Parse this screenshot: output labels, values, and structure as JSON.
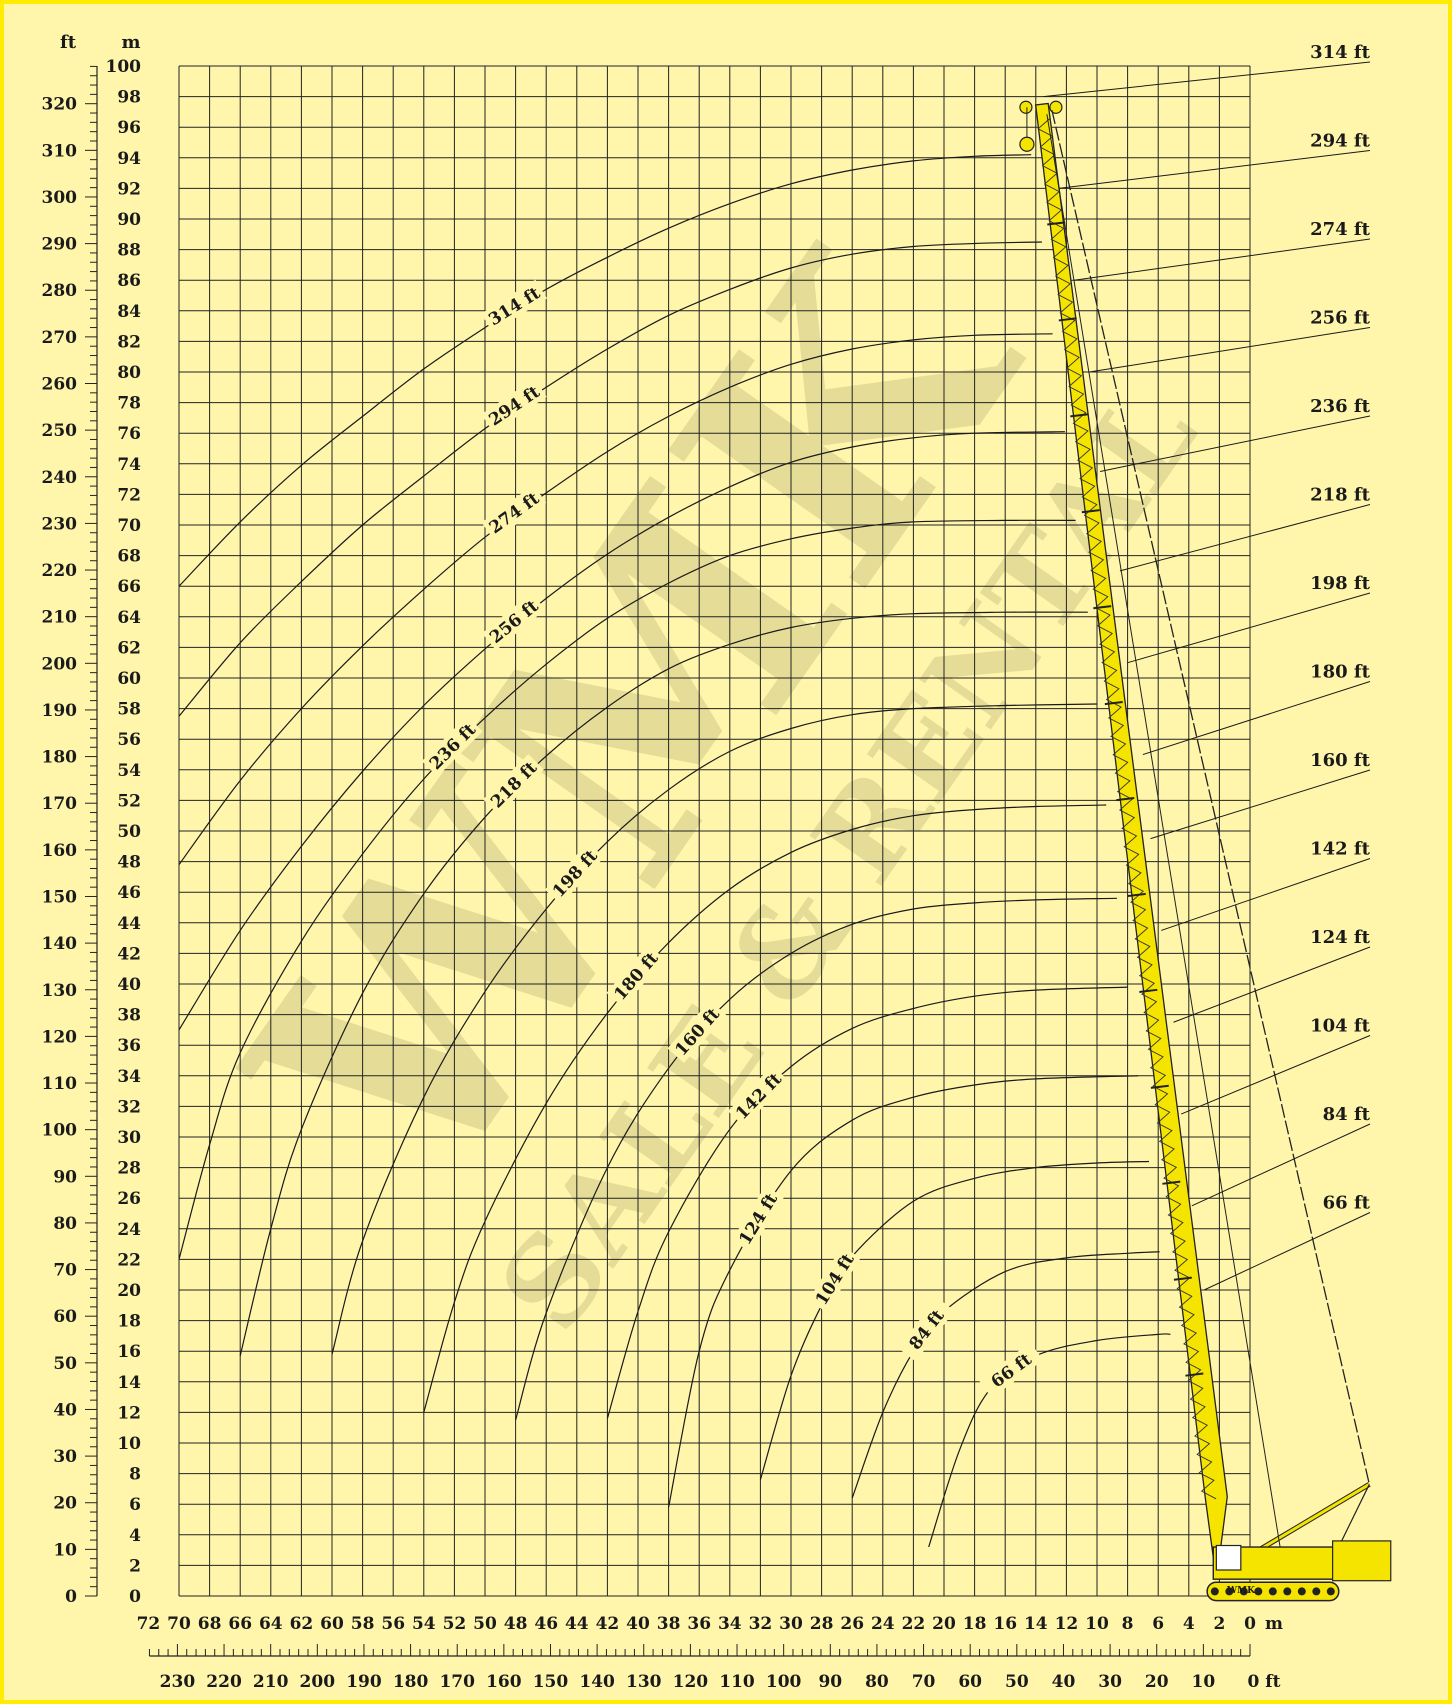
{
  "chart_data": {
    "type": "line",
    "title": "",
    "left_axis_units": {
      "ft": "ft",
      "m": "m"
    },
    "bottom_axis_units": {
      "m": "m",
      "ft": "0 ft"
    },
    "y_m": {
      "min": 0,
      "max": 100,
      "step": 2
    },
    "y_ft": {
      "min": 0,
      "max": 320,
      "step": 10
    },
    "x_m": {
      "min": 0,
      "max": 72,
      "step": 2,
      "direction": "reversed"
    },
    "x_ft": {
      "min": 0,
      "max": 230,
      "step": 10,
      "direction": "reversed"
    },
    "grid": true,
    "watermark": {
      "main": "WMK",
      "sub": "SALE & RENTAL",
      "color": "#d8cf8c"
    },
    "boom_color": "#f5e400",
    "series": [
      {
        "name": "314 ft",
        "boom_tip_m": [
          13.5,
          98
        ],
        "points": [
          [
            70,
            66
          ],
          [
            66,
            70.2
          ],
          [
            62,
            73.9
          ],
          [
            58,
            77.1
          ],
          [
            54,
            80.2
          ],
          [
            50,
            82.9
          ],
          [
            46,
            85.4
          ],
          [
            42,
            87.5
          ],
          [
            38,
            89.4
          ],
          [
            34,
            91
          ],
          [
            30,
            92.3
          ],
          [
            26,
            93.2
          ],
          [
            22,
            93.8
          ],
          [
            18,
            94.1
          ],
          [
            14.3,
            94.2
          ]
        ]
      },
      {
        "name": "294 ft",
        "boom_tip_m": [
          12.5,
          92
        ],
        "points": [
          [
            70,
            57.5
          ],
          [
            66,
            62.3
          ],
          [
            62,
            66.3
          ],
          [
            58,
            70
          ],
          [
            54,
            73.2
          ],
          [
            50,
            76.3
          ],
          [
            46,
            79
          ],
          [
            42,
            81.5
          ],
          [
            38,
            83.7
          ],
          [
            34,
            85.4
          ],
          [
            30,
            86.8
          ],
          [
            26,
            87.7
          ],
          [
            22,
            88.2
          ],
          [
            18,
            88.4
          ],
          [
            13.6,
            88.5
          ]
        ]
      },
      {
        "name": "274 ft",
        "boom_tip_m": [
          11.5,
          86
        ],
        "points": [
          [
            70,
            47.8
          ],
          [
            66,
            53.3
          ],
          [
            62,
            58
          ],
          [
            58,
            62.1
          ],
          [
            54,
            65.8
          ],
          [
            50,
            69.2
          ],
          [
            46,
            72.1
          ],
          [
            42,
            74.8
          ],
          [
            38,
            77.1
          ],
          [
            34,
            79
          ],
          [
            30,
            80.5
          ],
          [
            26,
            81.5
          ],
          [
            22,
            82.1
          ],
          [
            18,
            82.4
          ],
          [
            12.9,
            82.5
          ]
        ]
      },
      {
        "name": "256 ft",
        "boom_tip_m": [
          10.5,
          80
        ],
        "points": [
          [
            70,
            37
          ],
          [
            66,
            43.5
          ],
          [
            62,
            49
          ],
          [
            58,
            53.9
          ],
          [
            54,
            58.2
          ],
          [
            50,
            61.9
          ],
          [
            46,
            65.2
          ],
          [
            42,
            68.1
          ],
          [
            38,
            70.5
          ],
          [
            34,
            72.5
          ],
          [
            30,
            74.1
          ],
          [
            26,
            75.1
          ],
          [
            22,
            75.7
          ],
          [
            18,
            76
          ],
          [
            12.1,
            76.1
          ]
        ]
      },
      {
        "name": "236 ft",
        "boom_tip_m": [
          9.8,
          73.5
        ],
        "points": [
          [
            70,
            22
          ],
          [
            68,
            29.5
          ],
          [
            66,
            35.5
          ],
          [
            62,
            42.8
          ],
          [
            58,
            48.5
          ],
          [
            54,
            53.4
          ],
          [
            50,
            57.4
          ],
          [
            46,
            60.9
          ],
          [
            42,
            63.9
          ],
          [
            38,
            66.2
          ],
          [
            34,
            68
          ],
          [
            30,
            69.1
          ],
          [
            26,
            69.8
          ],
          [
            22,
            70.2
          ],
          [
            16,
            70.3
          ],
          [
            11.4,
            70.3
          ]
        ]
      },
      {
        "name": "218 ft",
        "boom_tip_m": [
          8.5,
          67
        ],
        "points": [
          [
            66,
            15.7
          ],
          [
            64,
            24
          ],
          [
            62,
            30.5
          ],
          [
            58,
            39.4
          ],
          [
            54,
            45.9
          ],
          [
            50,
            50.9
          ],
          [
            46,
            54.9
          ],
          [
            42,
            58.1
          ],
          [
            38,
            60.6
          ],
          [
            34,
            62.2
          ],
          [
            30,
            63.3
          ],
          [
            26,
            63.9
          ],
          [
            22,
            64.2
          ],
          [
            16,
            64.3
          ],
          [
            10.6,
            64.3
          ]
        ]
      },
      {
        "name": "198 ft",
        "boom_tip_m": [
          8,
          61
        ],
        "points": [
          [
            60,
            15.8
          ],
          [
            58,
            23.2
          ],
          [
            54,
            32.6
          ],
          [
            50,
            39.5
          ],
          [
            46,
            44.9
          ],
          [
            42,
            49.3
          ],
          [
            38,
            52.7
          ],
          [
            34,
            55.2
          ],
          [
            30,
            56.7
          ],
          [
            26,
            57.6
          ],
          [
            22,
            58
          ],
          [
            16,
            58.2
          ],
          [
            10,
            58.3
          ]
        ]
      },
      {
        "name": "180 ft",
        "boom_tip_m": [
          7,
          55
        ],
        "points": [
          [
            54,
            12
          ],
          [
            52,
            19.2
          ],
          [
            50,
            24.5
          ],
          [
            46,
            32.2
          ],
          [
            42,
            38.1
          ],
          [
            38,
            42.7
          ],
          [
            34,
            46.2
          ],
          [
            30,
            48.6
          ],
          [
            26,
            50.1
          ],
          [
            22,
            51
          ],
          [
            18,
            51.4
          ],
          [
            14,
            51.6
          ],
          [
            9.4,
            51.7
          ]
        ]
      },
      {
        "name": "160 ft",
        "boom_tip_m": [
          6.5,
          49.5
        ],
        "points": [
          [
            48,
            11.5
          ],
          [
            46,
            18.5
          ],
          [
            42,
            28
          ],
          [
            38,
            34.5
          ],
          [
            34,
            39
          ],
          [
            30,
            42
          ],
          [
            26,
            43.9
          ],
          [
            22,
            44.9
          ],
          [
            18,
            45.3
          ],
          [
            14,
            45.5
          ],
          [
            8.7,
            45.6
          ]
        ]
      },
      {
        "name": "142 ft",
        "boom_tip_m": [
          5.8,
          43.5
        ],
        "points": [
          [
            42,
            11.6
          ],
          [
            40,
            18.6
          ],
          [
            38,
            23.8
          ],
          [
            34,
            30.5
          ],
          [
            30,
            34.6
          ],
          [
            26,
            37.1
          ],
          [
            22,
            38.4
          ],
          [
            18,
            39.2
          ],
          [
            14,
            39.6
          ],
          [
            8,
            39.8
          ]
        ]
      },
      {
        "name": "124 ft",
        "boom_tip_m": [
          5,
          37.5
        ],
        "points": [
          [
            38,
            5.8
          ],
          [
            36,
            16
          ],
          [
            34,
            21.3
          ],
          [
            30,
            27.8
          ],
          [
            26,
            31.1
          ],
          [
            22,
            32.6
          ],
          [
            18,
            33.4
          ],
          [
            14,
            33.8
          ],
          [
            7.3,
            34
          ]
        ]
      },
      {
        "name": "104 ft",
        "boom_tip_m": [
          4.5,
          31.5
        ],
        "points": [
          [
            32,
            7.6
          ],
          [
            30,
            14.4
          ],
          [
            28,
            19
          ],
          [
            26,
            22.2
          ],
          [
            22,
            25.8
          ],
          [
            18,
            27.3
          ],
          [
            14,
            28
          ],
          [
            10,
            28.3
          ],
          [
            6.6,
            28.4
          ]
        ]
      },
      {
        "name": "84 ft",
        "boom_tip_m": [
          3.8,
          25.5
        ],
        "points": [
          [
            26,
            6.4
          ],
          [
            24,
            12
          ],
          [
            22,
            16
          ],
          [
            20,
            18.6
          ],
          [
            16,
            21.2
          ],
          [
            12,
            22.1
          ],
          [
            8,
            22.4
          ],
          [
            5.9,
            22.5
          ]
        ]
      },
      {
        "name": "66 ft",
        "boom_tip_m": [
          3,
          20
        ],
        "points": [
          [
            21,
            3.2
          ],
          [
            19,
            9.5
          ],
          [
            17,
            13.5
          ],
          [
            14,
            15.7
          ],
          [
            10,
            16.7
          ],
          [
            6,
            17.1
          ],
          [
            5.2,
            17.1
          ]
        ]
      }
    ]
  }
}
